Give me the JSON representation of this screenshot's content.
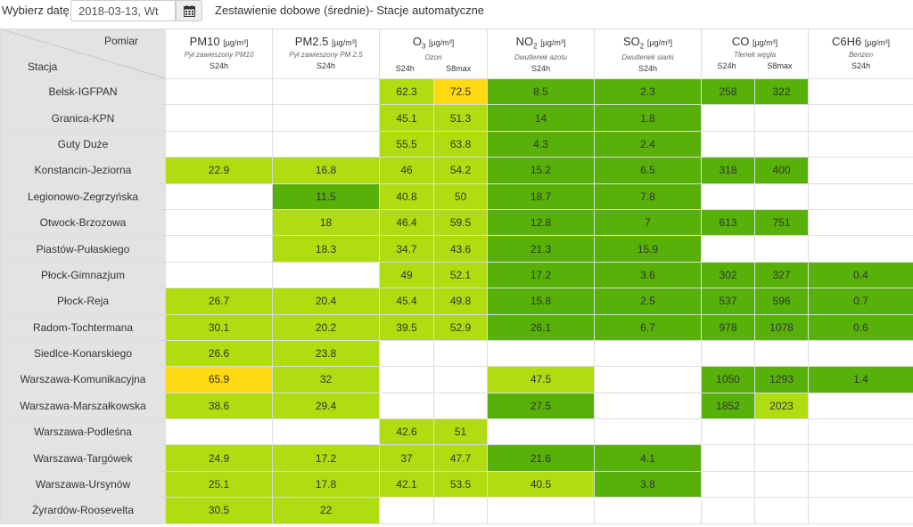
{
  "toolbar": {
    "date_label": "Wybierz datę:",
    "date_value": "2018-03-13, Wt",
    "calendar_icon": "calendar-icon",
    "title": "Zestawienie dobowe (średnie)- Stacje automatyczne"
  },
  "header": {
    "corner_top": "Pomiar",
    "corner_bottom": "Stacja",
    "pollutants": [
      {
        "name": "PM10",
        "sub": "",
        "unit": "[µg/m³]",
        "desc": "Pył zawieszony PM10",
        "indicators": [
          "S24h"
        ]
      },
      {
        "name": "PM2.5",
        "sub": "",
        "unit": "[µg/m³]",
        "desc": "Pył zawieszony PM 2.5",
        "indicators": [
          "S24h"
        ]
      },
      {
        "name": "O",
        "sub": "3",
        "unit": "[µg/m³]",
        "desc": "Ozon",
        "indicators": [
          "S24h",
          "S8max"
        ]
      },
      {
        "name": "NO",
        "sub": "2",
        "unit": "[µg/m³]",
        "desc": "Dwutlenek azotu",
        "indicators": [
          "S24h"
        ]
      },
      {
        "name": "SO",
        "sub": "2",
        "unit": "[µg/m³]",
        "desc": "Dwutlenek siarki",
        "indicators": [
          "S24h"
        ]
      },
      {
        "name": "CO",
        "sub": "",
        "unit": "[µg/m³]",
        "desc": "Tlenek węgla",
        "indicators": [
          "S24h",
          "S8max"
        ]
      },
      {
        "name": "C6H6",
        "sub": "",
        "unit": "[µg/m³]",
        "desc": "Benzen",
        "indicators": [
          "S24h"
        ]
      }
    ]
  },
  "colors": {
    "green": "#57b108",
    "lime": "#b0dd10",
    "yellow": "#ffd911",
    "station_bg": "#e3e3e3"
  },
  "rows": [
    {
      "station": "Belsk-IGFPAN",
      "cells": [
        [
          "",
          ""
        ],
        [
          "",
          ""
        ],
        [
          "62.3",
          "lime"
        ],
        [
          "72.5",
          "yellow"
        ],
        [
          "8.5",
          "green"
        ],
        [
          "2.3",
          "green"
        ],
        [
          "258",
          "green"
        ],
        [
          "322",
          "green"
        ],
        [
          "",
          ""
        ]
      ]
    },
    {
      "station": "Granica-KPN",
      "cells": [
        [
          "",
          ""
        ],
        [
          "",
          ""
        ],
        [
          "45.1",
          "lime"
        ],
        [
          "51.3",
          "lime"
        ],
        [
          "14",
          "green"
        ],
        [
          "1.8",
          "green"
        ],
        [
          "",
          ""
        ],
        [
          "",
          ""
        ],
        [
          "",
          ""
        ]
      ]
    },
    {
      "station": "Guty Duże",
      "cells": [
        [
          "",
          ""
        ],
        [
          "",
          ""
        ],
        [
          "55.5",
          "lime"
        ],
        [
          "63.8",
          "lime"
        ],
        [
          "4.3",
          "green"
        ],
        [
          "2.4",
          "green"
        ],
        [
          "",
          ""
        ],
        [
          "",
          ""
        ],
        [
          "",
          ""
        ]
      ]
    },
    {
      "station": "Konstancin-Jeziorna",
      "cells": [
        [
          "22.9",
          "lime"
        ],
        [
          "16.8",
          "lime"
        ],
        [
          "46",
          "lime"
        ],
        [
          "54.2",
          "lime"
        ],
        [
          "15.2",
          "green"
        ],
        [
          "6.5",
          "green"
        ],
        [
          "318",
          "green"
        ],
        [
          "400",
          "green"
        ],
        [
          "",
          ""
        ]
      ]
    },
    {
      "station": "Legionowo-Zegrzyńska",
      "cells": [
        [
          "",
          ""
        ],
        [
          "11.5",
          "green"
        ],
        [
          "40.8",
          "lime"
        ],
        [
          "50",
          "lime"
        ],
        [
          "18.7",
          "green"
        ],
        [
          "7.8",
          "green"
        ],
        [
          "",
          ""
        ],
        [
          "",
          ""
        ],
        [
          "",
          ""
        ]
      ]
    },
    {
      "station": "Otwock-Brzozowa",
      "cells": [
        [
          "",
          ""
        ],
        [
          "18",
          "lime"
        ],
        [
          "46.4",
          "lime"
        ],
        [
          "59.5",
          "lime"
        ],
        [
          "12.8",
          "green"
        ],
        [
          "7",
          "green"
        ],
        [
          "613",
          "green"
        ],
        [
          "751",
          "green"
        ],
        [
          "",
          ""
        ]
      ]
    },
    {
      "station": "Piastów-Pułaskiego",
      "cells": [
        [
          "",
          ""
        ],
        [
          "18.3",
          "lime"
        ],
        [
          "34.7",
          "lime"
        ],
        [
          "43.6",
          "lime"
        ],
        [
          "21.3",
          "green"
        ],
        [
          "15.9",
          "green"
        ],
        [
          "",
          ""
        ],
        [
          "",
          ""
        ],
        [
          "",
          ""
        ]
      ]
    },
    {
      "station": "Płock-Gimnazjum",
      "cells": [
        [
          "",
          ""
        ],
        [
          "",
          ""
        ],
        [
          "49",
          "lime"
        ],
        [
          "52.1",
          "lime"
        ],
        [
          "17.2",
          "green"
        ],
        [
          "3.6",
          "green"
        ],
        [
          "302",
          "green"
        ],
        [
          "327",
          "green"
        ],
        [
          "0.4",
          "green"
        ]
      ]
    },
    {
      "station": "Płock-Reja",
      "cells": [
        [
          "26.7",
          "lime"
        ],
        [
          "20.4",
          "lime"
        ],
        [
          "45.4",
          "lime"
        ],
        [
          "49.8",
          "lime"
        ],
        [
          "15.8",
          "green"
        ],
        [
          "2.5",
          "green"
        ],
        [
          "537",
          "green"
        ],
        [
          "596",
          "green"
        ],
        [
          "0.7",
          "green"
        ]
      ]
    },
    {
      "station": "Radom-Tochtermana",
      "cells": [
        [
          "30.1",
          "lime"
        ],
        [
          "20.2",
          "lime"
        ],
        [
          "39.5",
          "lime"
        ],
        [
          "52.9",
          "lime"
        ],
        [
          "26.1",
          "green"
        ],
        [
          "6.7",
          "green"
        ],
        [
          "978",
          "green"
        ],
        [
          "1078",
          "green"
        ],
        [
          "0.6",
          "green"
        ]
      ]
    },
    {
      "station": "Siedlce-Konarskiego",
      "cells": [
        [
          "26.6",
          "lime"
        ],
        [
          "23.8",
          "lime"
        ],
        [
          "",
          ""
        ],
        [
          "",
          ""
        ],
        [
          "",
          ""
        ],
        [
          "",
          ""
        ],
        [
          "",
          ""
        ],
        [
          "",
          ""
        ],
        [
          "",
          ""
        ]
      ]
    },
    {
      "station": "Warszawa-Komunikacyjna",
      "cells": [
        [
          "65.9",
          "yellow"
        ],
        [
          "32",
          "lime"
        ],
        [
          "",
          ""
        ],
        [
          "",
          ""
        ],
        [
          "47.5",
          "lime"
        ],
        [
          "",
          ""
        ],
        [
          "1050",
          "green"
        ],
        [
          "1293",
          "green"
        ],
        [
          "1.4",
          "green"
        ]
      ]
    },
    {
      "station": "Warszawa-Marszałkowska",
      "cells": [
        [
          "38.6",
          "lime"
        ],
        [
          "29.4",
          "lime"
        ],
        [
          "",
          ""
        ],
        [
          "",
          ""
        ],
        [
          "27.5",
          "green"
        ],
        [
          "",
          ""
        ],
        [
          "1852",
          "green"
        ],
        [
          "2023",
          "lime"
        ],
        [
          "",
          ""
        ]
      ]
    },
    {
      "station": "Warszawa-Podleśna",
      "cells": [
        [
          "",
          ""
        ],
        [
          "",
          ""
        ],
        [
          "42.6",
          "lime"
        ],
        [
          "51",
          "lime"
        ],
        [
          "",
          ""
        ],
        [
          "",
          ""
        ],
        [
          "",
          ""
        ],
        [
          "",
          ""
        ],
        [
          "",
          ""
        ]
      ]
    },
    {
      "station": "Warszawa-Targówek",
      "cells": [
        [
          "24.9",
          "lime"
        ],
        [
          "17.2",
          "lime"
        ],
        [
          "37",
          "lime"
        ],
        [
          "47.7",
          "lime"
        ],
        [
          "21.6",
          "green"
        ],
        [
          "4.1",
          "green"
        ],
        [
          "",
          ""
        ],
        [
          "",
          ""
        ],
        [
          "",
          ""
        ]
      ]
    },
    {
      "station": "Warszawa-Ursynów",
      "cells": [
        [
          "25.1",
          "lime"
        ],
        [
          "17.8",
          "lime"
        ],
        [
          "42.1",
          "lime"
        ],
        [
          "53.5",
          "lime"
        ],
        [
          "40.5",
          "lime"
        ],
        [
          "3.8",
          "green"
        ],
        [
          "",
          ""
        ],
        [
          "",
          ""
        ],
        [
          "",
          ""
        ]
      ]
    },
    {
      "station": "Żyrardów-Roosevelta",
      "cells": [
        [
          "30.5",
          "lime"
        ],
        [
          "22",
          "lime"
        ],
        [
          "",
          ""
        ],
        [
          "",
          ""
        ],
        [
          "",
          ""
        ],
        [
          "",
          ""
        ],
        [
          "",
          ""
        ],
        [
          "",
          ""
        ],
        [
          "",
          ""
        ]
      ]
    }
  ]
}
